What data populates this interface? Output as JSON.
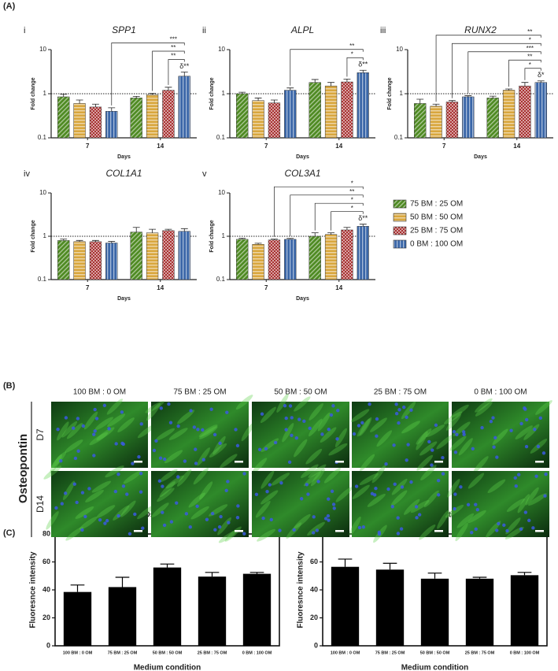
{
  "panels": {
    "a": "(A)",
    "b": "(B)",
    "c": "(C)"
  },
  "panel_b": {
    "stain": "Osteopontin",
    "columns": [
      "100 BM : 0 OM",
      "75 BM : 25 OM",
      "50 BM : 50 OM",
      "25 BM : 75 OM",
      "0 BM : 100 OM"
    ],
    "rows": [
      "D7",
      "D14"
    ]
  },
  "chart_data": [
    {
      "type": "grouped_bar",
      "panel": "i",
      "title": "SPP1",
      "y_label": "Fold change",
      "x_label": "Days",
      "categories": [
        "7",
        "14"
      ],
      "log_scale": true,
      "ylim": [
        0.1,
        10
      ],
      "yticks": [
        0.1,
        1,
        10
      ],
      "reference_line": 1,
      "series": [
        {
          "name": "75 BM : 25 OM",
          "color": "#4e8a22",
          "values": [
            0.85,
            0.8
          ],
          "errors": [
            0.12,
            0.07
          ]
        },
        {
          "name": "50 BM : 50 OM",
          "color": "#d9a73e",
          "values": [
            0.6,
            0.95
          ],
          "errors": [
            0.12,
            0.07
          ]
        },
        {
          "name": "25 BM : 75 OM",
          "color": "#a83232",
          "values": [
            0.5,
            1.2
          ],
          "errors": [
            0.08,
            0.2
          ]
        },
        {
          "name": "0 BM : 100 OM",
          "color": "#3a66a8",
          "values": [
            0.4,
            2.5
          ],
          "errors": [
            0.08,
            0.6
          ]
        }
      ],
      "significance": [
        "***",
        "**",
        "**"
      ],
      "marker": "δ**"
    },
    {
      "type": "grouped_bar",
      "panel": "ii",
      "title": "ALPL",
      "y_label": "Fold change",
      "x_label": "Days",
      "categories": [
        "7",
        "14"
      ],
      "log_scale": true,
      "ylim": [
        0.1,
        10
      ],
      "yticks": [
        0.1,
        1,
        10
      ],
      "reference_line": 1,
      "series": [
        {
          "values": [
            1.0,
            1.8
          ],
          "errors": [
            0.08,
            0.3
          ]
        },
        {
          "values": [
            0.7,
            1.5
          ],
          "errors": [
            0.1,
            0.3
          ]
        },
        {
          "values": [
            0.62,
            1.85
          ],
          "errors": [
            0.1,
            0.3
          ]
        },
        {
          "values": [
            1.2,
            3.0
          ],
          "errors": [
            0.15,
            0.4
          ]
        }
      ],
      "significance": [
        "**",
        "*"
      ],
      "marker": "δ**"
    },
    {
      "type": "grouped_bar",
      "panel": "iii",
      "title": "RUNX2",
      "y_label": "Fold change",
      "x_label": "Days",
      "categories": [
        "7",
        "14"
      ],
      "log_scale": true,
      "ylim": [
        0.1,
        10
      ],
      "yticks": [
        0.1,
        1,
        10
      ],
      "reference_line": 1,
      "series": [
        {
          "values": [
            0.6,
            0.8
          ],
          "errors": [
            0.15,
            0.08
          ]
        },
        {
          "values": [
            0.52,
            1.2
          ],
          "errors": [
            0.06,
            0.08
          ]
        },
        {
          "values": [
            0.65,
            1.5
          ],
          "errors": [
            0.05,
            0.3
          ]
        },
        {
          "values": [
            0.85,
            1.8
          ],
          "errors": [
            0.05,
            0.15
          ]
        }
      ],
      "significance": [
        "**",
        "*",
        "***",
        "**",
        "*"
      ],
      "marker": "δ*"
    },
    {
      "type": "grouped_bar",
      "panel": "iv",
      "title": "COL1A1",
      "y_label": "Fold change",
      "x_label": "Days",
      "categories": [
        "7",
        "14"
      ],
      "log_scale": true,
      "ylim": [
        0.1,
        10
      ],
      "yticks": [
        0.1,
        1,
        10
      ],
      "reference_line": 1,
      "series": [
        {
          "values": [
            0.8,
            1.25
          ],
          "errors": [
            0.06,
            0.35
          ]
        },
        {
          "values": [
            0.75,
            1.2
          ],
          "errors": [
            0.05,
            0.25
          ]
        },
        {
          "values": [
            0.75,
            1.35
          ],
          "errors": [
            0.05,
            0.1
          ]
        },
        {
          "values": [
            0.7,
            1.3
          ],
          "errors": [
            0.06,
            0.2
          ]
        }
      ]
    },
    {
      "type": "grouped_bar",
      "panel": "v",
      "title": "COL3A1",
      "y_label": "Fold change",
      "x_label": "Days",
      "categories": [
        "7",
        "14"
      ],
      "log_scale": true,
      "ylim": [
        0.1,
        10
      ],
      "yticks": [
        0.1,
        1,
        10
      ],
      "reference_line": 1,
      "series": [
        {
          "values": [
            0.85,
            1.0
          ],
          "errors": [
            0.05,
            0.2
          ]
        },
        {
          "values": [
            0.65,
            1.1
          ],
          "errors": [
            0.04,
            0.1
          ]
        },
        {
          "values": [
            0.82,
            1.4
          ],
          "errors": [
            0.04,
            0.2
          ]
        },
        {
          "values": [
            0.85,
            1.7
          ],
          "errors": [
            0.04,
            0.2
          ]
        }
      ],
      "significance": [
        "*",
        "**",
        "*",
        "*"
      ],
      "marker": "δ**"
    },
    {
      "type": "bar",
      "title": "Osteopontin",
      "subtitle": "Day 7",
      "y_label": "Fluoresnce intensity",
      "x_label": "Medium condition",
      "categories": [
        "100 BM : 0 OM",
        "75 BM : 25 OM",
        "50 BM : 50 OM",
        "25 BM : 75 OM",
        "0 BM : 100 OM"
      ],
      "values": [
        38.5,
        42,
        56,
        49.5,
        51.5
      ],
      "errors": [
        5,
        7,
        2.5,
        3,
        1
      ],
      "color": "#000000",
      "ylim": [
        0,
        80
      ],
      "yticks": [
        0,
        20,
        40,
        60,
        80
      ]
    },
    {
      "type": "bar",
      "title": "Osteopontin",
      "subtitle": "Day 14",
      "y_label": "Fluoresnce intensity",
      "x_label": "Medium condition",
      "categories": [
        "100 BM : 0 OM",
        "75 BM : 25 OM",
        "50 BM : 50 OM",
        "25 BM : 75 OM",
        "0 BM : 100 OM"
      ],
      "values": [
        56.5,
        54.5,
        48,
        48,
        50.5
      ],
      "errors": [
        5.5,
        4.5,
        4,
        1,
        2
      ],
      "color": "#000000",
      "ylim": [
        0,
        80
      ],
      "yticks": [
        0,
        20,
        40,
        60,
        80
      ]
    }
  ]
}
